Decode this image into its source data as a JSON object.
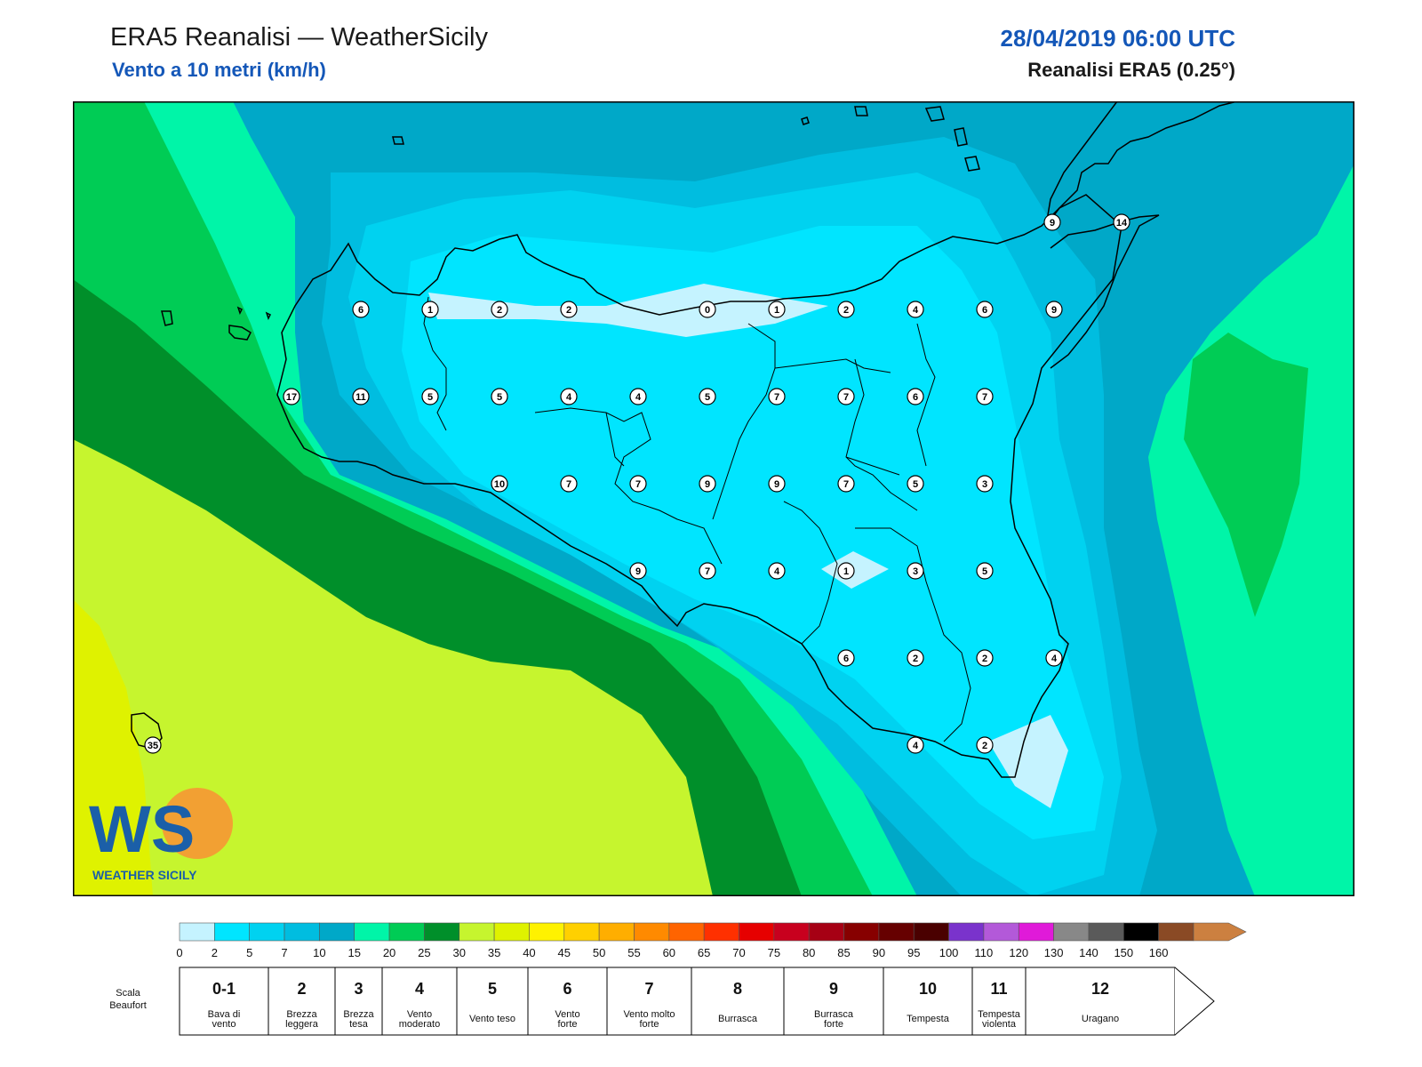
{
  "header": {
    "title": "ERA5 Reanalisi — WeatherSicily",
    "subtitle": "Vento a 10 metri (km/h)",
    "datetime": "28/04/2019 06:00 UTC",
    "source": "Reanalisi ERA5 (0.25°)"
  },
  "logo": {
    "letters": "WS",
    "name": "WEATHER SICILY"
  },
  "stations": [
    {
      "value": "6"
    },
    {
      "value": "1"
    },
    {
      "value": "2"
    },
    {
      "value": "2"
    },
    {
      "value": "0"
    },
    {
      "value": "1"
    },
    {
      "value": "2"
    },
    {
      "value": "4"
    },
    {
      "value": "6"
    },
    {
      "value": "9"
    },
    {
      "value": "9"
    },
    {
      "value": "14"
    },
    {
      "value": "17"
    },
    {
      "value": "11"
    },
    {
      "value": "5"
    },
    {
      "value": "5"
    },
    {
      "value": "4"
    },
    {
      "value": "4"
    },
    {
      "value": "5"
    },
    {
      "value": "7"
    },
    {
      "value": "7"
    },
    {
      "value": "6"
    },
    {
      "value": "7"
    },
    {
      "value": "10"
    },
    {
      "value": "7"
    },
    {
      "value": "7"
    },
    {
      "value": "9"
    },
    {
      "value": "9"
    },
    {
      "value": "7"
    },
    {
      "value": "5"
    },
    {
      "value": "3"
    },
    {
      "value": "9"
    },
    {
      "value": "7"
    },
    {
      "value": "4"
    },
    {
      "value": "1"
    },
    {
      "value": "3"
    },
    {
      "value": "5"
    },
    {
      "value": "6"
    },
    {
      "value": "2"
    },
    {
      "value": "2"
    },
    {
      "value": "4"
    },
    {
      "value": "4"
    },
    {
      "value": "2"
    },
    {
      "value": "35"
    }
  ],
  "colorbar": {
    "colors": [
      "#c5f3ff",
      "#00e5ff",
      "#00d2f0",
      "#00bde0",
      "#00a8c8",
      "#00f5a8",
      "#00cc55",
      "#008f2a",
      "#c6f52e",
      "#dff200",
      "#fff200",
      "#ffd000",
      "#ffae00",
      "#ff8a00",
      "#ff6400",
      "#ff3000",
      "#e60000",
      "#c8001e",
      "#a60014",
      "#870000",
      "#660000",
      "#4a0000",
      "#7a33cc",
      "#b359d9",
      "#e01ad9",
      "#888888",
      "#5a5a5a",
      "#000000",
      "#8a4a25",
      "#cc8040"
    ],
    "labels": [
      "0",
      "2",
      "5",
      "7",
      "10",
      "15",
      "20",
      "25",
      "30",
      "35",
      "40",
      "45",
      "50",
      "55",
      "60",
      "65",
      "70",
      "75",
      "80",
      "85",
      "90",
      "95",
      "100",
      "110",
      "120",
      "130",
      "140",
      "150",
      "160"
    ]
  },
  "beaufort": {
    "title_line1": "Scala",
    "title_line2": "Beaufort",
    "classes": [
      {
        "num": "0-1",
        "name1": "Bava di",
        "name2": "vento"
      },
      {
        "num": "2",
        "name1": "Brezza",
        "name2": "leggera"
      },
      {
        "num": "3",
        "name1": "Brezza",
        "name2": "tesa"
      },
      {
        "num": "4",
        "name1": "Vento",
        "name2": "moderato"
      },
      {
        "num": "5",
        "name1": "Vento teso",
        "name2": ""
      },
      {
        "num": "6",
        "name1": "Vento",
        "name2": "forte"
      },
      {
        "num": "7",
        "name1": "Vento molto",
        "name2": "forte"
      },
      {
        "num": "8",
        "name1": "Burrasca",
        "name2": ""
      },
      {
        "num": "9",
        "name1": "Burrasca",
        "name2": "forte"
      },
      {
        "num": "10",
        "name1": "Tempesta",
        "name2": ""
      },
      {
        "num": "11",
        "name1": "Tempesta",
        "name2": "violenta"
      },
      {
        "num": "12",
        "name1": "Uragano",
        "name2": ""
      }
    ]
  }
}
